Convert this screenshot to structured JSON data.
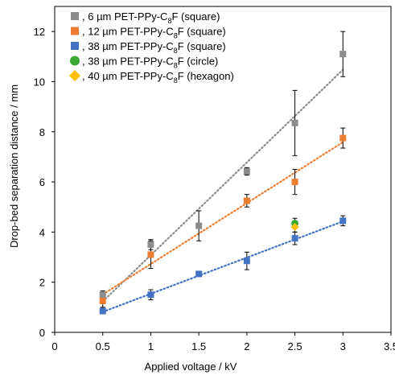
{
  "chart_data": {
    "type": "scatter",
    "xlabel": "Applied voltage / kV",
    "ylabel": "Drop-bed separation distance / mm",
    "xlim": [
      0,
      3.5
    ],
    "ylim": [
      0,
      13
    ],
    "xticks": [
      "0",
      "0.5",
      "1",
      "1.5",
      "2",
      "2.5",
      "3",
      "3.5"
    ],
    "yticks": [
      "0",
      "2",
      "4",
      "6",
      "8",
      "10",
      "12"
    ],
    "legend_position": "top-left",
    "series": [
      {
        "name": ", 6 µm PET-PPy-C8F (square)",
        "label_parts": [
          ", 6 µm PET-PPy-C",
          "8",
          "F (square)"
        ],
        "marker": "square",
        "color": "#8c8c8c",
        "trendline": true,
        "points": [
          {
            "x": 0.5,
            "y": 1.5,
            "err": 0.15
          },
          {
            "x": 1.0,
            "y": 3.5,
            "err": 0.2
          },
          {
            "x": 1.5,
            "y": 4.25,
            "err": 0.6
          },
          {
            "x": 2.0,
            "y": 6.42,
            "err": 0.15
          },
          {
            "x": 2.5,
            "y": 8.35,
            "err": 1.3
          },
          {
            "x": 3.0,
            "y": 11.1,
            "err": 0.9
          }
        ]
      },
      {
        "name": ", 12 µm PET-PPy-C8F (square)",
        "label_parts": [
          ", 12 µm PET-PPy-C",
          "8",
          "F (square)"
        ],
        "marker": "square",
        "color": "#ed7d31",
        "trendline": true,
        "points": [
          {
            "x": 0.5,
            "y": 1.25,
            "err": 0.25
          },
          {
            "x": 1.0,
            "y": 3.1,
            "err": 0.55
          },
          {
            "x": 2.0,
            "y": 5.25,
            "err": 0.25
          },
          {
            "x": 2.5,
            "y": 6.0,
            "err": 0.5
          },
          {
            "x": 3.0,
            "y": 7.75,
            "err": 0.4
          }
        ]
      },
      {
        "name": ", 38 µm PET-PPy-C8F (square)",
        "label_parts": [
          ", 38 µm PET-PPy-C",
          "8",
          "F (square)"
        ],
        "marker": "square",
        "color": "#4472c4",
        "trendline": true,
        "points": [
          {
            "x": 0.5,
            "y": 0.85,
            "err": 0.05
          },
          {
            "x": 1.0,
            "y": 1.5,
            "err": 0.2
          },
          {
            "x": 1.5,
            "y": 2.33,
            "err": 0.05
          },
          {
            "x": 2.0,
            "y": 2.85,
            "err": 0.35
          },
          {
            "x": 2.5,
            "y": 3.75,
            "err": 0.25
          },
          {
            "x": 3.0,
            "y": 4.45,
            "err": 0.2
          }
        ]
      },
      {
        "name": ", 38 µm PET-PPy-C8F (circle)",
        "label_parts": [
          ", 38 µm PET-PPy-C",
          "8",
          "F (circle)"
        ],
        "marker": "circle",
        "color": "#3aaa35",
        "trendline": false,
        "points": [
          {
            "x": 2.5,
            "y": 4.35,
            "err": 0.2
          }
        ]
      },
      {
        "name": ", 40 µm PET-PPy-C8F (hexagon)",
        "label_parts": [
          ", 40 µm PET-PPy-C",
          "8",
          "F (hexagon)"
        ],
        "marker": "diamond",
        "color": "#ffc000",
        "trendline": false,
        "points": [
          {
            "x": 2.5,
            "y": 4.2,
            "err": 0.2
          }
        ]
      }
    ]
  }
}
